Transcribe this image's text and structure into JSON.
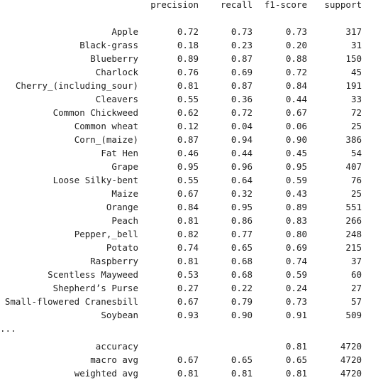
{
  "report": {
    "headers": {
      "precision": "precision",
      "recall": "recall",
      "f1": "f1-score",
      "support": "support"
    },
    "classes": [
      {
        "label": "Apple",
        "precision": "0.72",
        "recall": "0.73",
        "f1": "0.73",
        "support": "317"
      },
      {
        "label": "Black-grass",
        "precision": "0.18",
        "recall": "0.23",
        "f1": "0.20",
        "support": "31"
      },
      {
        "label": "Blueberry",
        "precision": "0.89",
        "recall": "0.87",
        "f1": "0.88",
        "support": "150"
      },
      {
        "label": "Charlock",
        "precision": "0.76",
        "recall": "0.69",
        "f1": "0.72",
        "support": "45"
      },
      {
        "label": "Cherry_(including_sour)",
        "precision": "0.81",
        "recall": "0.87",
        "f1": "0.84",
        "support": "191"
      },
      {
        "label": "Cleavers",
        "precision": "0.55",
        "recall": "0.36",
        "f1": "0.44",
        "support": "33"
      },
      {
        "label": "Common Chickweed",
        "precision": "0.62",
        "recall": "0.72",
        "f1": "0.67",
        "support": "72"
      },
      {
        "label": "Common wheat",
        "precision": "0.12",
        "recall": "0.04",
        "f1": "0.06",
        "support": "25"
      },
      {
        "label": "Corn_(maize)",
        "precision": "0.87",
        "recall": "0.94",
        "f1": "0.90",
        "support": "386"
      },
      {
        "label": "Fat Hen",
        "precision": "0.46",
        "recall": "0.44",
        "f1": "0.45",
        "support": "54"
      },
      {
        "label": "Grape",
        "precision": "0.95",
        "recall": "0.96",
        "f1": "0.95",
        "support": "407"
      },
      {
        "label": "Loose Silky-bent",
        "precision": "0.55",
        "recall": "0.64",
        "f1": "0.59",
        "support": "76"
      },
      {
        "label": "Maize",
        "precision": "0.67",
        "recall": "0.32",
        "f1": "0.43",
        "support": "25"
      },
      {
        "label": "Orange",
        "precision": "0.84",
        "recall": "0.95",
        "f1": "0.89",
        "support": "551"
      },
      {
        "label": "Peach",
        "precision": "0.81",
        "recall": "0.86",
        "f1": "0.83",
        "support": "266"
      },
      {
        "label": "Pepper,_bell",
        "precision": "0.82",
        "recall": "0.77",
        "f1": "0.80",
        "support": "248"
      },
      {
        "label": "Potato",
        "precision": "0.74",
        "recall": "0.65",
        "f1": "0.69",
        "support": "215"
      },
      {
        "label": "Raspberry",
        "precision": "0.81",
        "recall": "0.68",
        "f1": "0.74",
        "support": "37"
      },
      {
        "label": "Scentless Mayweed",
        "precision": "0.53",
        "recall": "0.68",
        "f1": "0.59",
        "support": "60"
      },
      {
        "label": "Shepherd’s Purse",
        "precision": "0.27",
        "recall": "0.22",
        "f1": "0.24",
        "support": "27"
      },
      {
        "label": "Small-flowered Cranesbill",
        "precision": "0.67",
        "recall": "0.79",
        "f1": "0.73",
        "support": "57"
      },
      {
        "label": "Soybean",
        "precision": "0.93",
        "recall": "0.90",
        "f1": "0.91",
        "support": "509"
      }
    ],
    "ellipsis": "...",
    "summary": [
      {
        "label": "accuracy",
        "precision": "",
        "recall": "",
        "f1": "0.81",
        "support": "4720"
      },
      {
        "label": "macro avg",
        "precision": "0.67",
        "recall": "0.65",
        "f1": "0.65",
        "support": "4720"
      },
      {
        "label": "weighted avg",
        "precision": "0.81",
        "recall": "0.81",
        "f1": "0.81",
        "support": "4720"
      }
    ]
  }
}
